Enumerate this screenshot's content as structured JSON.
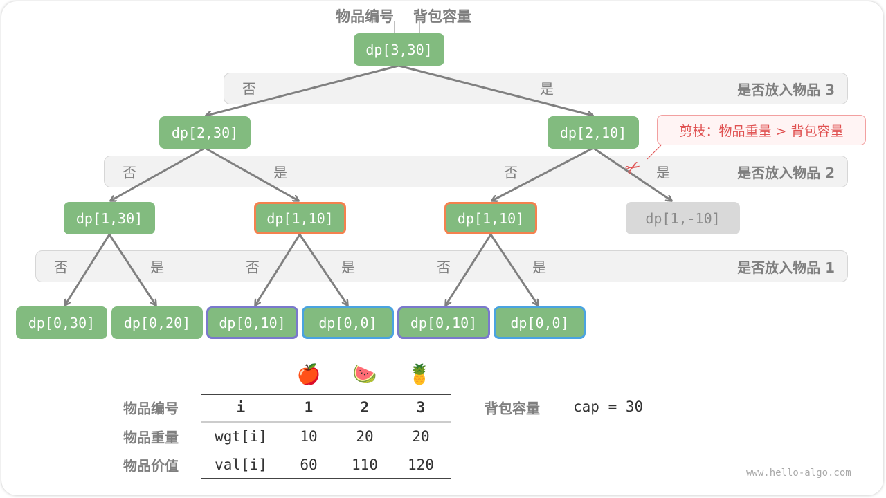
{
  "header": {
    "item_label": "物品编号",
    "capacity_label": "背包容量"
  },
  "bands": [
    {
      "title": "是否放入物品 3",
      "no": "否",
      "yes": "是"
    },
    {
      "title": "是否放入物品 2",
      "labels": [
        "否",
        "是",
        "否",
        "是"
      ]
    },
    {
      "title": "是否放入物品 1",
      "labels": [
        "否",
        "是",
        "否",
        "是",
        "否",
        "是"
      ]
    }
  ],
  "nodes": {
    "root": "dp[3,30]",
    "level1": [
      "dp[2,30]",
      "dp[2,10]"
    ],
    "level2": [
      "dp[1,30]",
      "dp[1,10]",
      "dp[1,10]",
      "dp[1,-10]"
    ],
    "level3": [
      "dp[0,30]",
      "dp[0,20]",
      "dp[0,10]",
      "dp[0,0]",
      "dp[0,10]",
      "dp[0,0]"
    ]
  },
  "callout": "剪枝：物品重量 > 背包容量",
  "icons": {
    "pruning": "scissors-icon",
    "fruits": [
      "apple",
      "watermelon",
      "pineapple"
    ]
  },
  "colors": {
    "node": "#82bb7f",
    "repeat_orange": "#f4814e",
    "repeat_purple": "#7a79cc",
    "repeat_blue": "#4aa3e0",
    "pruned": "#d9d9d9",
    "callout": "#e05252"
  },
  "table": {
    "fruits": [
      "🍎",
      "🍉",
      "🍍"
    ],
    "rows": [
      {
        "label": "物品编号",
        "cells": [
          "i",
          "1",
          "2",
          "3"
        ]
      },
      {
        "label": "物品重量",
        "cells": [
          "wgt[i]",
          "10",
          "20",
          "20"
        ]
      },
      {
        "label": "物品价值",
        "cells": [
          "val[i]",
          "60",
          "110",
          "120"
        ]
      }
    ]
  },
  "capacity": {
    "label": "背包容量",
    "value": "cap = 30"
  },
  "watermark": "www.hello-algo.com"
}
